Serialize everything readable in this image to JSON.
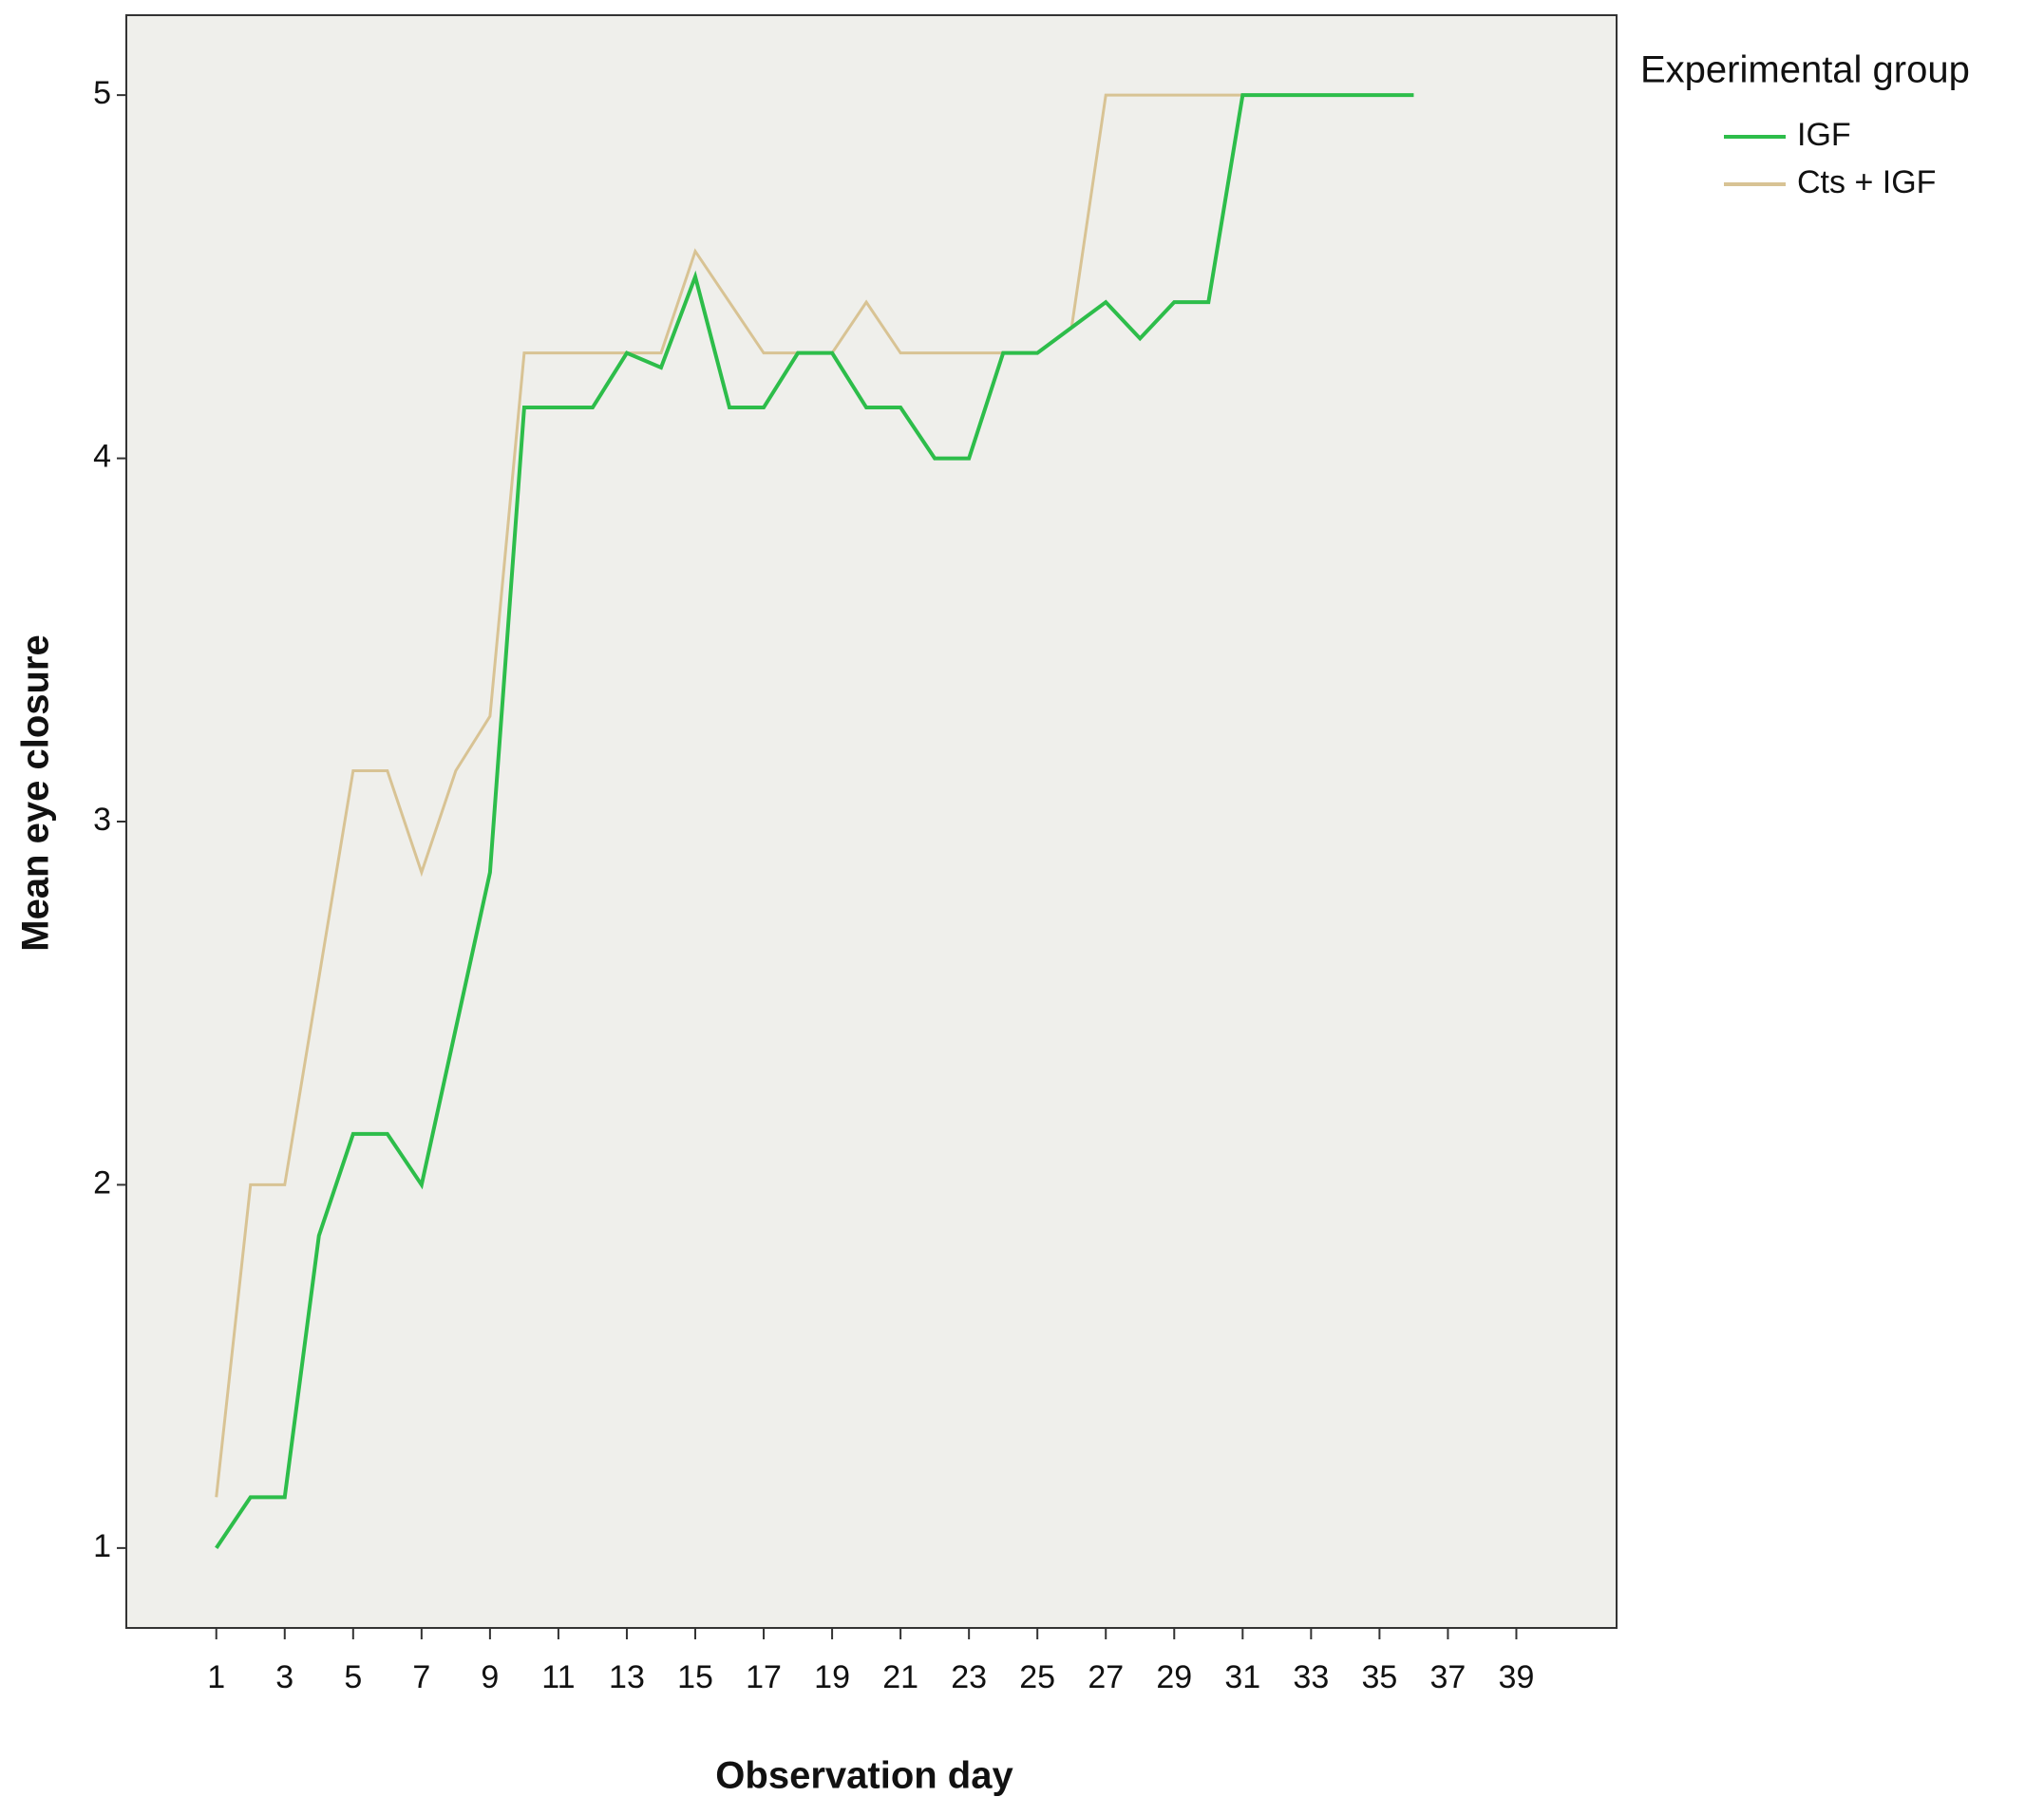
{
  "chart_data": {
    "type": "line",
    "y_label": "Mean eye closure",
    "x_label": "Observation day",
    "legend_title": "Experimental group",
    "legend_position": "outside-right",
    "x": [
      1,
      2,
      3,
      4,
      5,
      6,
      7,
      8,
      9,
      10,
      11,
      12,
      13,
      14,
      15,
      16,
      17,
      18,
      19,
      20,
      21,
      22,
      23,
      24,
      25,
      26,
      27,
      28,
      29,
      30,
      31,
      32,
      33,
      34,
      35,
      36
    ],
    "series": [
      {
        "name": "IGF",
        "color": "#2dbd4a",
        "values": [
          1.0,
          1.14,
          1.14,
          1.86,
          2.14,
          2.14,
          2.0,
          2.43,
          2.86,
          4.14,
          4.14,
          4.14,
          4.29,
          4.25,
          4.5,
          4.14,
          4.14,
          4.29,
          4.29,
          4.14,
          4.14,
          4.0,
          4.0,
          4.29,
          4.29,
          4.36,
          4.43,
          4.33,
          4.43,
          4.43,
          5.0,
          5.0,
          5.0,
          5.0,
          5.0,
          5.0
        ]
      },
      {
        "name": "Cts + IGF",
        "color": "#d8c394",
        "values": [
          1.14,
          2.0,
          2.0,
          2.57,
          3.14,
          3.14,
          2.86,
          3.14,
          3.29,
          4.29,
          4.29,
          4.29,
          4.29,
          4.29,
          4.57,
          4.43,
          4.29,
          4.29,
          4.29,
          4.43,
          4.29,
          4.29,
          4.29,
          4.29,
          4.29,
          4.36,
          5.0,
          5.0,
          5.0,
          5.0,
          5.0,
          5.0,
          5.0,
          5.0,
          5.0,
          5.0
        ]
      }
    ],
    "xlim": [
      -1.63,
      41.93
    ],
    "xticks": [
      1,
      3,
      5,
      7,
      9,
      11,
      13,
      15,
      17,
      19,
      21,
      23,
      25,
      27,
      29,
      31,
      33,
      35,
      37,
      39
    ],
    "ylim": [
      0.78,
      5.22
    ],
    "yticks": [
      1,
      2,
      3,
      4,
      5
    ],
    "grid": false
  }
}
